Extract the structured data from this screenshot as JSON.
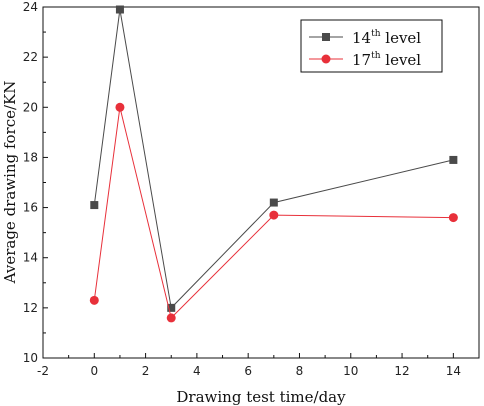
{
  "chart_data": {
    "type": "line",
    "title": "",
    "xlabel": "Drawing test time/day",
    "ylabel": "Average drawing force/KN",
    "xlim": [
      -2,
      15
    ],
    "ylim": [
      10,
      24
    ],
    "xticks": [
      -2,
      0,
      2,
      4,
      6,
      8,
      10,
      12,
      14
    ],
    "yticks": [
      10,
      12,
      14,
      16,
      18,
      20,
      22,
      24
    ],
    "grid": false,
    "legend_position": "top-right",
    "series": [
      {
        "name": "14",
        "name_sup": "th",
        "name_suffix": " level",
        "color": "#4a4a4a",
        "marker": "square",
        "x": [
          0,
          1,
          3,
          7,
          14
        ],
        "y": [
          16.1,
          23.9,
          12.0,
          16.2,
          17.9
        ]
      },
      {
        "name": "17",
        "name_sup": "th",
        "name_suffix": " level",
        "color": "#e8303a",
        "marker": "circle",
        "x": [
          0,
          1,
          3,
          7,
          14
        ],
        "y": [
          12.3,
          20.0,
          11.6,
          15.7,
          15.6
        ]
      }
    ]
  }
}
